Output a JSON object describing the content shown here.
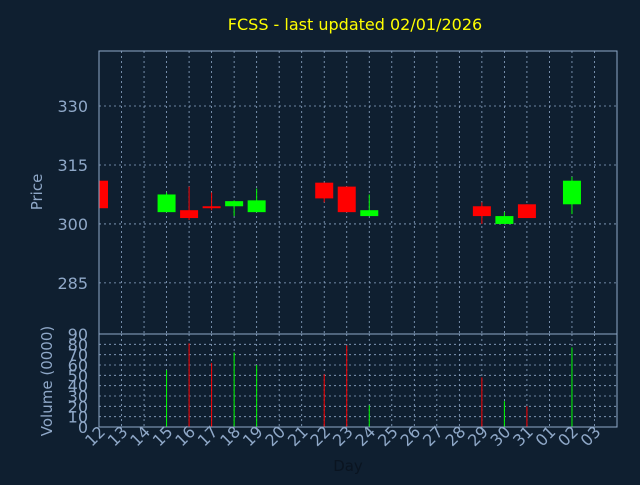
{
  "chart_data": [
    {
      "type": "candlestick",
      "title": "FCSS - last updated 02/01/2026",
      "xlabel": "",
      "ylabel": "Price",
      "ylim": [
        272,
        344
      ],
      "yticks": [
        285,
        300,
        315,
        330
      ],
      "grid": true,
      "up_color": "#00ff00",
      "down_color": "#ff0000",
      "candles": [
        {
          "day": "12",
          "open": 311.0,
          "close": 304.0,
          "high": 311.5,
          "low": 304.0
        },
        {
          "day": "15",
          "open": 303.0,
          "close": 307.5,
          "high": 308.0,
          "low": 303.0
        },
        {
          "day": "16",
          "open": 303.5,
          "close": 301.5,
          "high": 309.5,
          "low": 301.0
        },
        {
          "day": "17",
          "open": 304.5,
          "close": 304.0,
          "high": 308.0,
          "low": 303.5
        },
        {
          "day": "18",
          "open": 304.5,
          "close": 305.8,
          "high": 306.0,
          "low": 302.0
        },
        {
          "day": "19",
          "open": 303.0,
          "close": 306.0,
          "high": 309.0,
          "low": 303.0
        },
        {
          "day": "22",
          "open": 310.5,
          "close": 306.5,
          "high": 310.5,
          "low": 305.5
        },
        {
          "day": "23",
          "open": 309.5,
          "close": 303.0,
          "high": 309.5,
          "low": 303.0
        },
        {
          "day": "24",
          "open": 302.0,
          "close": 303.5,
          "high": 307.5,
          "low": 302.0
        },
        {
          "day": "29",
          "open": 304.5,
          "close": 302.0,
          "high": 305.5,
          "low": 300.0
        },
        {
          "day": "30",
          "open": 300.0,
          "close": 302.0,
          "high": 303.0,
          "low": 300.0
        },
        {
          "day": "31",
          "open": 305.0,
          "close": 301.5,
          "high": 305.0,
          "low": 301.5
        },
        {
          "day": "02",
          "open": 305.0,
          "close": 311.0,
          "high": 312.0,
          "low": 302.5
        }
      ]
    },
    {
      "type": "bar",
      "title": "",
      "xlabel": "Day",
      "ylabel": "Volume (0000)",
      "ylim": [
        0,
        90
      ],
      "yticks": [
        0,
        10,
        20,
        30,
        40,
        50,
        60,
        70,
        80,
        90
      ],
      "grid": true,
      "categories": [
        "12",
        "13",
        "14",
        "15",
        "16",
        "17",
        "18",
        "19",
        "20",
        "21",
        "22",
        "23",
        "24",
        "25",
        "26",
        "27",
        "28",
        "29",
        "30",
        "31",
        "01",
        "02",
        "03"
      ],
      "values": [
        {
          "day": "15",
          "volume": 55,
          "direction": "up"
        },
        {
          "day": "16",
          "volume": 81,
          "direction": "down"
        },
        {
          "day": "17",
          "volume": 62,
          "direction": "down"
        },
        {
          "day": "18",
          "volume": 72,
          "direction": "up"
        },
        {
          "day": "19",
          "volume": 60,
          "direction": "up"
        },
        {
          "day": "22",
          "volume": 51,
          "direction": "down"
        },
        {
          "day": "23",
          "volume": 79,
          "direction": "down"
        },
        {
          "day": "24",
          "volume": 21,
          "direction": "up"
        },
        {
          "day": "29",
          "volume": 48,
          "direction": "down"
        },
        {
          "day": "30",
          "volume": 25,
          "direction": "up"
        },
        {
          "day": "31",
          "volume": 20,
          "direction": "down"
        },
        {
          "day": "02",
          "volume": 77,
          "direction": "up"
        }
      ]
    }
  ]
}
